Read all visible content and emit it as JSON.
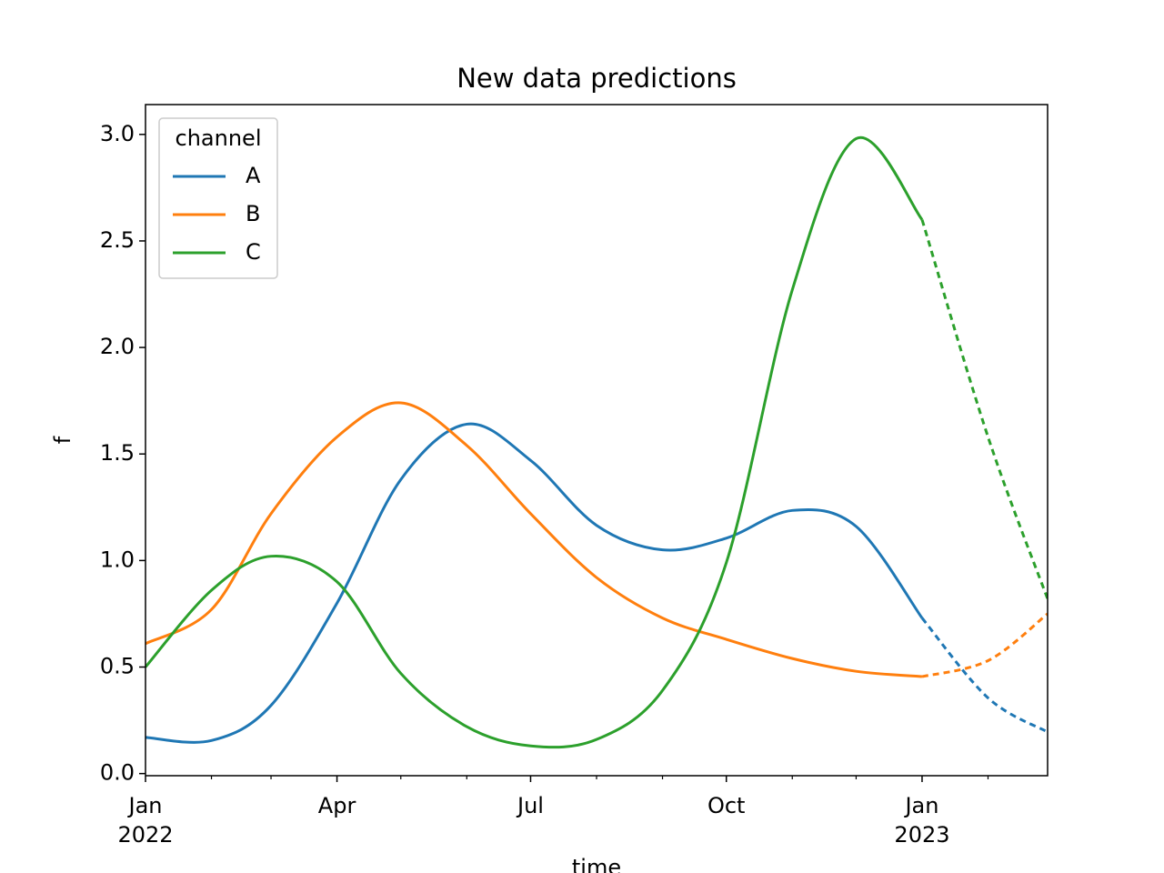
{
  "chart_data": {
    "type": "line",
    "title": "New data predictions",
    "xlabel": "time",
    "ylabel": "f",
    "x": [
      "2022-01",
      "2022-02",
      "2022-03",
      "2022-04",
      "2022-05",
      "2022-06",
      "2022-07",
      "2022-08",
      "2022-09",
      "2022-10",
      "2022-11",
      "2022-12",
      "2023-01",
      "2023-02",
      "2023-03"
    ],
    "series": [
      {
        "name": "A",
        "color": "#1f77b4",
        "values": [
          0.17,
          0.155,
          0.32,
          0.8,
          1.38,
          1.64,
          1.47,
          1.165,
          1.05,
          1.105,
          1.235,
          1.16,
          0.73,
          0.355,
          0.195
        ]
      },
      {
        "name": "B",
        "color": "#ff7f0e",
        "values": [
          0.61,
          0.77,
          1.22,
          1.58,
          1.74,
          1.54,
          1.22,
          0.92,
          0.73,
          0.63,
          0.54,
          0.48,
          0.455,
          0.53,
          0.75
        ]
      },
      {
        "name": "C",
        "color": "#2ca02c",
        "values": [
          0.5,
          0.86,
          1.02,
          0.9,
          0.47,
          0.22,
          0.13,
          0.16,
          0.39,
          0.99,
          2.27,
          2.98,
          2.6,
          1.58,
          0.82
        ]
      }
    ],
    "dashed_from": "2023-01",
    "xlim": [
      "2022-01",
      "2023-03"
    ],
    "xticks": [
      {
        "value": "2022-01",
        "label": [
          "Jan",
          "2022"
        ]
      },
      {
        "value": "2022-04",
        "label": [
          "Apr"
        ]
      },
      {
        "value": "2022-07",
        "label": [
          "Jul"
        ]
      },
      {
        "value": "2022-10",
        "label": [
          "Oct"
        ]
      },
      {
        "value": "2023-01",
        "label": [
          "Jan",
          "2023"
        ]
      }
    ],
    "xticks_minor": [
      "2022-02",
      "2022-03",
      "2022-05",
      "2022-06",
      "2022-08",
      "2022-09",
      "2022-11",
      "2022-12",
      "2023-02"
    ],
    "ylim": [
      -0.01,
      3.14
    ],
    "yticks": [
      {
        "value": 0,
        "label": "0.0"
      },
      0.5,
      {
        "value": 1,
        "label": "1.0"
      },
      1.5,
      {
        "value": 2,
        "label": "2.0"
      },
      2.5,
      {
        "value": 3,
        "label": "3.0"
      }
    ],
    "legend": {
      "title": "channel",
      "loc": "upper left"
    }
  }
}
